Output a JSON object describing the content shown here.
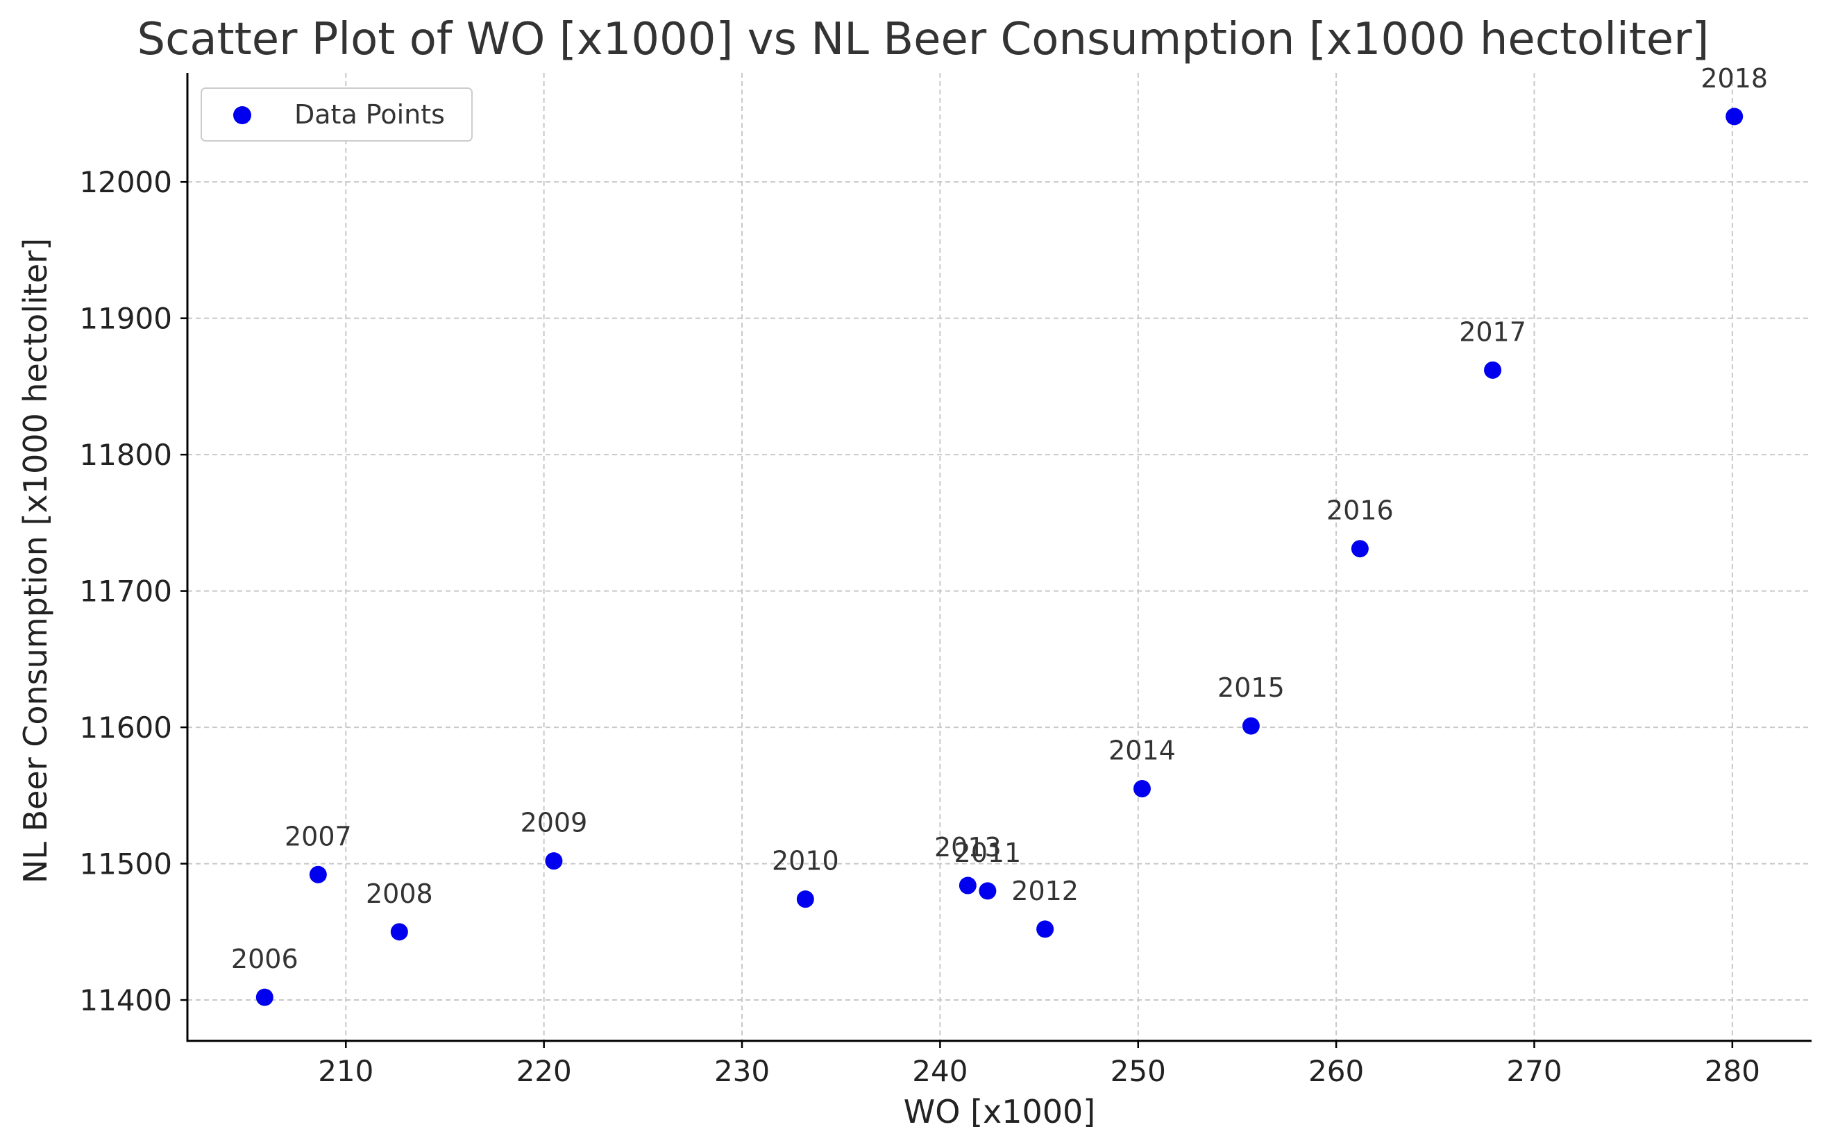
{
  "chart_data": {
    "type": "scatter",
    "title": "Scatter Plot of WO [x1000] vs NL Beer Consumption [x1000 hectoliter]",
    "xlabel": "WO [x1000]",
    "ylabel": "NL Beer Consumption [x1000 hectoliter]",
    "xlim": [
      202,
      284
    ],
    "ylim": [
      11370,
      12080
    ],
    "xticks": [
      210,
      220,
      230,
      240,
      250,
      260,
      270,
      280
    ],
    "yticks": [
      11400,
      11500,
      11600,
      11700,
      11800,
      11900,
      12000
    ],
    "grid": true,
    "legend": {
      "position": "top-left",
      "entries": [
        "Data Points"
      ]
    },
    "marker_color": "#0000ee",
    "series": [
      {
        "name": "Data Points",
        "points": [
          {
            "label": "2006",
            "x": 205.9,
            "y": 11402
          },
          {
            "label": "2007",
            "x": 208.6,
            "y": 11492
          },
          {
            "label": "2008",
            "x": 212.7,
            "y": 11450
          },
          {
            "label": "2009",
            "x": 220.5,
            "y": 11502
          },
          {
            "label": "2010",
            "x": 233.2,
            "y": 11474
          },
          {
            "label": "2011",
            "x": 242.4,
            "y": 11480
          },
          {
            "label": "2012",
            "x": 245.3,
            "y": 11452
          },
          {
            "label": "2013",
            "x": 241.4,
            "y": 11484
          },
          {
            "label": "2014",
            "x": 250.2,
            "y": 11555
          },
          {
            "label": "2015",
            "x": 255.7,
            "y": 11601
          },
          {
            "label": "2016",
            "x": 261.2,
            "y": 11731
          },
          {
            "label": "2017",
            "x": 267.9,
            "y": 11862
          },
          {
            "label": "2018",
            "x": 280.1,
            "y": 12048
          }
        ]
      }
    ]
  }
}
